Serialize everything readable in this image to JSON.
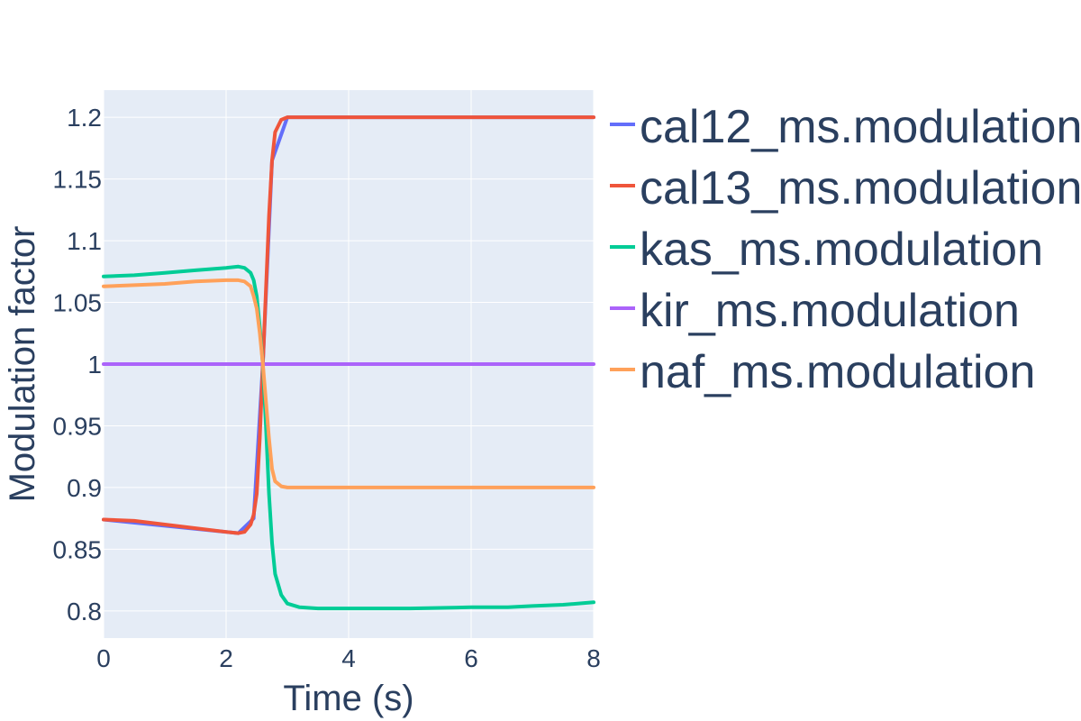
{
  "chart_data": {
    "type": "line",
    "title": "",
    "xlabel": "Time (s)",
    "ylabel": "Modulation factor",
    "xlim": [
      0,
      8
    ],
    "ylim": [
      0.778,
      1.222
    ],
    "x_ticks": [
      0,
      2,
      4,
      6,
      8
    ],
    "x_tick_labels": [
      "0",
      "2",
      "4",
      "6",
      "8"
    ],
    "y_ticks": [
      0.8,
      0.85,
      0.9,
      0.95,
      1,
      1.05,
      1.1,
      1.15,
      1.2
    ],
    "y_tick_labels": [
      "0.8",
      "0.85",
      "0.9",
      "0.95",
      "1",
      "1.05",
      "1.1",
      "1.15",
      "1.2"
    ],
    "grid": true,
    "legend_position": "right",
    "plot_background": "#e5ecf6",
    "series": [
      {
        "name": "cal12_ms.modulation",
        "color": "#636efa",
        "x": [
          0,
          2.2,
          2.45,
          2.6,
          2.75,
          3.0,
          8
        ],
        "y": [
          0.874,
          0.863,
          0.875,
          1.0,
          1.165,
          1.2,
          1.2
        ]
      },
      {
        "name": "cal13_ms.modulation",
        "color": "#ef553b",
        "x": [
          0,
          0.5,
          1.0,
          1.5,
          2.0,
          2.2,
          2.3,
          2.4,
          2.45,
          2.5,
          2.55,
          2.6,
          2.65,
          2.7,
          2.75,
          2.8,
          2.9,
          3.0,
          4.0,
          6.0,
          8.0
        ],
        "y": [
          0.874,
          0.873,
          0.87,
          0.867,
          0.864,
          0.863,
          0.864,
          0.87,
          0.878,
          0.895,
          0.94,
          1.0,
          1.06,
          1.12,
          1.165,
          1.188,
          1.198,
          1.2,
          1.2,
          1.2,
          1.2
        ]
      },
      {
        "name": "kas_ms.modulation",
        "color": "#00cc96",
        "x": [
          0,
          0.5,
          1.0,
          1.5,
          2.0,
          2.2,
          2.3,
          2.4,
          2.45,
          2.5,
          2.55,
          2.6,
          2.65,
          2.7,
          2.75,
          2.8,
          2.9,
          3.0,
          3.2,
          3.5,
          4.0,
          5.0,
          6.0,
          6.6,
          7.0,
          7.5,
          8.0
        ],
        "y": [
          1.071,
          1.072,
          1.074,
          1.076,
          1.078,
          1.079,
          1.078,
          1.074,
          1.068,
          1.055,
          1.03,
          1.0,
          0.95,
          0.895,
          0.855,
          0.83,
          0.813,
          0.806,
          0.803,
          0.802,
          0.802,
          0.802,
          0.803,
          0.803,
          0.804,
          0.805,
          0.807
        ]
      },
      {
        "name": "kir_ms.modulation",
        "color": "#ab63fa",
        "x": [
          0,
          8
        ],
        "y": [
          1.0,
          1.0
        ]
      },
      {
        "name": "naf_ms.modulation",
        "color": "#ffa15a",
        "x": [
          0,
          0.5,
          1.0,
          1.5,
          2.0,
          2.2,
          2.3,
          2.4,
          2.45,
          2.5,
          2.55,
          2.6,
          2.65,
          2.7,
          2.75,
          2.8,
          2.9,
          3.0,
          4.0,
          6.0,
          8.0
        ],
        "y": [
          1.063,
          1.064,
          1.065,
          1.067,
          1.068,
          1.068,
          1.067,
          1.063,
          1.055,
          1.045,
          1.025,
          1.0,
          0.97,
          0.94,
          0.915,
          0.905,
          0.901,
          0.9,
          0.9,
          0.9,
          0.9
        ]
      }
    ]
  }
}
